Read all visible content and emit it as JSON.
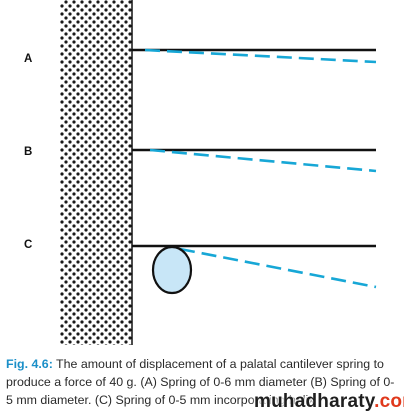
{
  "figure": {
    "springs": [
      {
        "label": "A",
        "has_circle": false
      },
      {
        "label": "B",
        "has_circle": false
      },
      {
        "label": "C",
        "has_circle": true
      }
    ],
    "colors": {
      "wall_dots": "#1a1a1a",
      "rest_line": "#111111",
      "displaced_line": "#17a7d6",
      "circle_fill": "#c8e6f7",
      "circle_stroke": "#111111",
      "caption_lead": "#1a8fc8"
    }
  },
  "caption": {
    "lead": "Fig. 4.6:",
    "body": " The amount of displacement of a palatal cantilever spring to produce a force of 40 g. (A) Spring of 0-6 mm diameter (B) Spring of 0-5 mm diameter. (C) Spring of 0-5 mm incorporating helix"
  },
  "watermark": {
    "prefix": "muhadharaty",
    "suffix": ".com"
  }
}
